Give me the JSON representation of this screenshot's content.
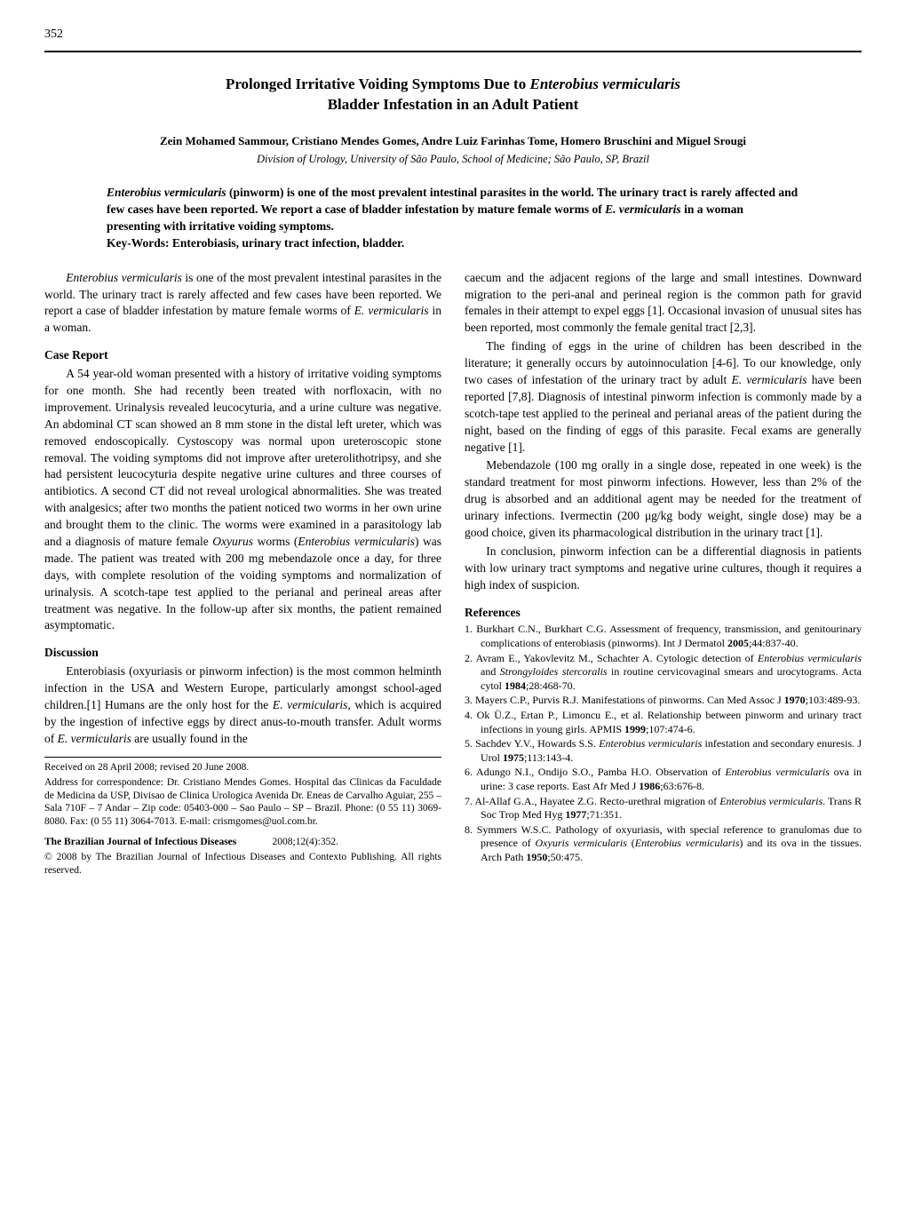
{
  "page_number": "352",
  "title_line1_pre": "Prolonged Irritative Voiding Symptoms Due to ",
  "title_line1_em": "Enterobius vermicularis",
  "title_line2": "Bladder Infestation in an Adult Patient",
  "authors": "Zein Mohamed Sammour, Cristiano Mendes Gomes, Andre Luiz Farinhas Tome, Homero Bruschini and Miguel Srougi",
  "affiliation": "Division of Urology, University of São Paulo, School of Medicine; São Paulo, SP, Brazil",
  "abstract_s1_em": "Enterobius vermicularis",
  "abstract_s1_rest": " (pinworm) is one of the most prevalent intestinal parasites in the world. The urinary tract is rarely affected and few cases have been reported. We report a case of bladder infestation by mature female worms of ",
  "abstract_s2_em": "E. vermicularis",
  "abstract_s2_rest": " in a woman presenting with irritative voiding symptoms.",
  "keywords": "Key-Words: Enterobiasis, urinary tract infection, bladder.",
  "intro_em": "Enterobius vermicularis",
  "intro_rest": " is one of the most prevalent intestinal parasites in the world. The urinary tract is rarely affected and few cases have been reported. We report a case of bladder infestation by mature female worms of ",
  "intro_em2": "E. vermicularis",
  "intro_rest2": " in a woman.",
  "case_head": "Case Report",
  "case_p1_a": "A 54 year-old woman presented with a history of irritative voiding symptoms for one month. She had recently been treated with norfloxacin, with no improvement. Urinalysis revealed leucocyturia, and a urine culture was negative. An abdominal CT scan showed an 8 mm stone in the distal left ureter, which was removed endoscopically. Cystoscopy was normal upon ureteroscopic stone removal. The voiding symptoms did not improve after ureterolithotripsy, and she had persistent leucocyturia despite negative urine cultures and three courses of antibiotics. A second CT did not reveal urological abnormalities. She was treated with analgesics; after two months the patient noticed two worms in her own urine and brought them to the clinic. The worms were examined in a parasitology lab and a diagnosis of mature female ",
  "case_p1_em1": "Oxyurus",
  "case_p1_b": " worms (",
  "case_p1_em2": "Enterobius vermicularis",
  "case_p1_c": ") was made. The patient was treated with 200 mg mebendazole once a day, for three days, with complete resolution of the voiding symptoms and normalization of urinalysis. A scotch-tape test applied to the perianal and perineal areas after treatment was negative. In the follow-up after six months, the patient remained asymptomatic.",
  "disc_head": "Discussion",
  "disc_p1_a": "Enterobiasis (oxyuriasis or pinworm infection) is the most common helminth infection in the USA and Western Europe, particularly amongst school-aged children.[1] Humans are the only host for the ",
  "disc_p1_em1": "E. vermicularis",
  "disc_p1_b": ", which is acquired by the ingestion of infective eggs by direct anus-to-mouth transfer. Adult worms of ",
  "disc_p1_em2": "E. vermicularis",
  "disc_p1_c": " are usually found in the ",
  "fn_received": "Received on 28 April 2008; revised 20 June 2008.",
  "fn_address": "Address for correspondence: Dr. Cristiano Mendes Gomes. Hospital das Clinicas da Faculdade de Medicina da USP, Divisao de Clinica Urologica Avenida Dr. Eneas de Carvalho Aguiar, 255 – Sala 710F – 7 Andar – Zip code: 05403-000 – Sao Paulo – SP – Brazil. Phone: (0 55 11) 3069-8080. Fax: (0 55 11) 3064-7013. E-mail: crismgomes@uol.com.br.",
  "fn_journal_strong": "The Brazilian Journal of Infectious Diseases",
  "fn_journal_cite": "2008;12(4):352.",
  "fn_copyright": "© 2008 by The Brazilian Journal of Infectious Diseases and Contexto Publishing. All rights reserved.",
  "col2_p1": "caecum and the adjacent regions of the large and small intestines. Downward migration to the peri-anal and perineal region is the common path for gravid females in their attempt to expel eggs [1]. Occasional invasion of unusual sites has been reported, most commonly the female genital tract [2,3].",
  "col2_p2_a": "The finding of eggs in the urine of children has been described in the literature; it generally occurs by autoinnoculation [4-6]. To our knowledge, only two cases of infestation of the urinary tract by adult ",
  "col2_p2_em": "E. vermicularis",
  "col2_p2_b": " have been reported [7,8]. Diagnosis of intestinal pinworm infection is commonly made by a scotch-tape test applied to the perineal and perianal areas of the patient during the night, based on the finding of eggs of this parasite. Fecal exams are generally negative [1].",
  "col2_p3": "Mebendazole (100 mg orally in a single dose, repeated in one week) is the standard treatment for most pinworm infections. However, less than 2% of the drug is absorbed and an additional agent may be needed for the treatment of urinary infections. Ivermectin (200 μg/kg body weight, single dose) may be a good choice, given its pharmacological distribution in the urinary tract [1].",
  "col2_p4": "In conclusion, pinworm infection can be a differential diagnosis in patients with low urinary tract symptoms and negative urine cultures, though it requires a high index of suspicion.",
  "refs_head": "References",
  "refs": [
    "Burkhart C.N., Burkhart C.G. Assessment of frequency, transmission, and genitourinary complications of enterobiasis (pinworms). Int J Dermatol 2005;44:837-40.",
    "Avram E., Yakovlevitz M., Schachter A. Cytologic detection of Enterobius vermicularis and Strongyloides stercoralis in routine cervicovaginal smears and urocytograms. Acta cytol 1984;28:468-70.",
    "Mayers C.P., Purvis R.J. Manifestations of pinworms. Can Med Assoc J 1970;103:489-93.",
    "Ok Ü.Z., Ertan P., Limoncu E., et al. Relationship between pinworm and urinary tract infections in young girls. APMIS 1999;107:474-6.",
    "Sachdev Y.V., Howards S.S. Enterobius vermicularis infestation and secondary enuresis. J Urol 1975;113:143-4.",
    "Adungo N.I., Ondijo S.O., Pamba H.O. Observation of Enterobius vermicularis ova in urine: 3 case reports. East Afr Med J 1986;63:676-8.",
    "Al-Allaf G.A., Hayatee Z.G. Recto-urethral migration of Enterobius vermicularis. Trans R Soc Trop Med Hyg 1977;71:351.",
    "Symmers W.S.C. Pathology of oxyuriasis, with special reference to granulomas due to presence of Oxyuris vermicularis (Enterobius vermicularis) and its ova in the tissues. Arch Path 1950;50:475."
  ],
  "ref_em_map": {
    "1": [
      "2005"
    ],
    "2": [
      "Enterobius vermicularis",
      "Strongyloides stercoralis",
      "1984"
    ],
    "3": [
      "1970"
    ],
    "4": [
      "1999"
    ],
    "5": [
      "Enterobius vermicularis",
      "1975"
    ],
    "6": [
      "Enterobius vermicularis",
      "1986"
    ],
    "7": [
      "Enterobius vermicularis",
      "1977"
    ],
    "8": [
      "Oxyuris vermicularis",
      "Enterobius vermicularis",
      "1950"
    ]
  },
  "ref_bold_map": {
    "1": [
      "2005"
    ],
    "2": [
      "1984"
    ],
    "3": [
      "1970"
    ],
    "4": [
      "1999"
    ],
    "5": [
      "1975"
    ],
    "6": [
      "1986"
    ],
    "7": [
      "1977"
    ],
    "8": [
      "1950"
    ]
  }
}
